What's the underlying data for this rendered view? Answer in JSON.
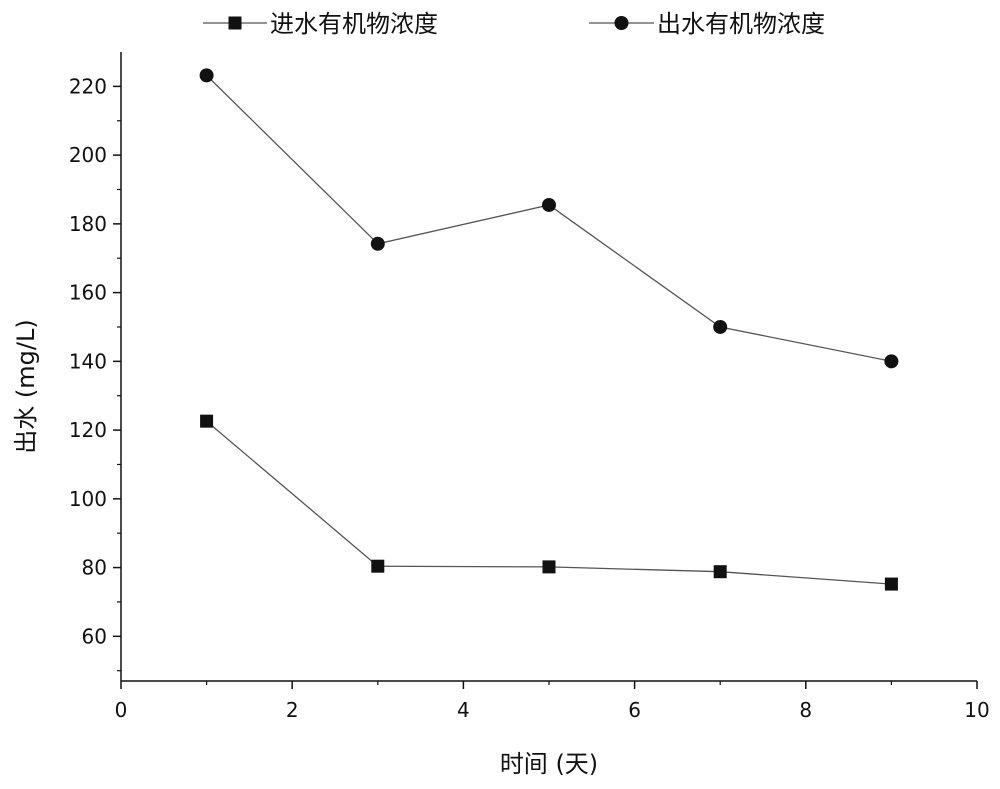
{
  "chart_data": {
    "type": "line",
    "title": "",
    "xlabel": "时间 (天)",
    "ylabel": "出水 (mg/L)",
    "xlim": [
      0,
      10
    ],
    "ylim": [
      47,
      230
    ],
    "x_ticks": [
      0,
      2,
      4,
      6,
      8,
      10
    ],
    "y_ticks": [
      60,
      80,
      100,
      120,
      140,
      160,
      180,
      200,
      220
    ],
    "grid": false,
    "legend_position": "top",
    "series": [
      {
        "name": "进水有机物浓度",
        "marker": "square",
        "x": [
          1,
          3,
          5,
          7,
          9
        ],
        "y": [
          122.6,
          80.4,
          80.2,
          78.8,
          75.2
        ]
      },
      {
        "name": "出水有机物浓度",
        "marker": "circle",
        "x": [
          1,
          3,
          5,
          7,
          9
        ],
        "y": [
          223.2,
          174.2,
          185.5,
          150.0,
          140.0
        ]
      }
    ],
    "colors": {
      "line": "#555555",
      "marker": "#111111",
      "axis": "#111111"
    }
  }
}
